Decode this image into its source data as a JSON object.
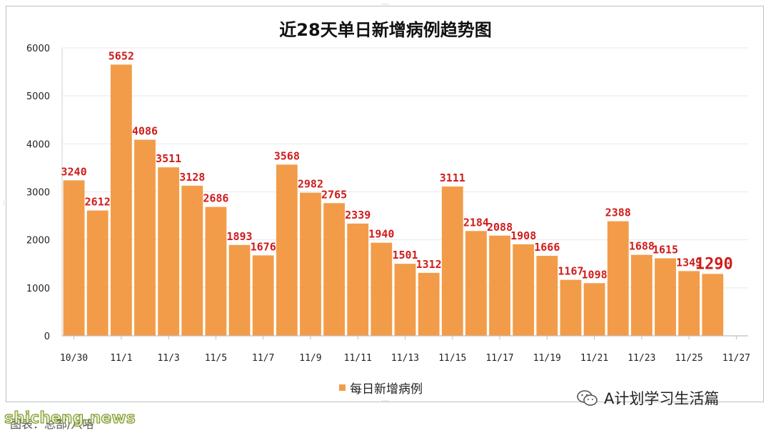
{
  "chart_data": {
    "type": "bar",
    "title": "近28天单日新增病例趋势图",
    "categories": [
      "10/30",
      "10/31",
      "11/1",
      "11/2",
      "11/3",
      "11/4",
      "11/5",
      "11/6",
      "11/7",
      "11/8",
      "11/9",
      "11/10",
      "11/11",
      "11/12",
      "11/13",
      "11/14",
      "11/15",
      "11/16",
      "11/17",
      "11/18",
      "11/19",
      "11/20",
      "11/21",
      "11/22",
      "11/23",
      "11/24",
      "11/25",
      "11/26"
    ],
    "x_tick_labels": [
      "10/30",
      "11/1",
      "11/3",
      "11/5",
      "11/7",
      "11/9",
      "11/11",
      "11/13",
      "11/15",
      "11/17",
      "11/19",
      "11/21",
      "11/23",
      "11/25",
      "11/27"
    ],
    "series": [
      {
        "name": "每日新增病例",
        "color": "#f29c49",
        "values": [
          3240,
          2612,
          5652,
          4086,
          3511,
          3128,
          2686,
          1893,
          1676,
          3568,
          2982,
          2765,
          2339,
          1940,
          1501,
          1312,
          3111,
          2184,
          2088,
          1908,
          1666,
          1167,
          1098,
          2388,
          1688,
          1615,
          1349,
          1290
        ]
      }
    ],
    "data_label_color": "#d01c1c",
    "highlighted_last_label": true,
    "ylim": [
      0,
      6000
    ],
    "y_ticks": [
      0,
      1000,
      2000,
      3000,
      4000,
      5000,
      6000
    ],
    "grid": true,
    "legend_position": "bottom-center",
    "xlabel": "",
    "ylabel": ""
  },
  "legend": {
    "label": "每日新增病例"
  },
  "watermark": {
    "icon": "wechat-icon",
    "text": "A计划学习生活篇"
  },
  "source_text": "图表：总部/八咯",
  "site_text": "shicheng.news"
}
